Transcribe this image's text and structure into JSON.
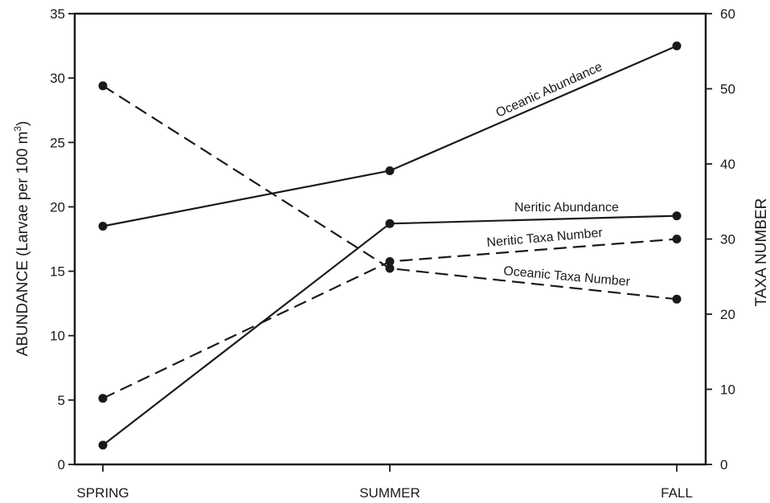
{
  "chart_data": {
    "type": "line",
    "categories": [
      "SPRING",
      "SUMMER",
      "FALL"
    ],
    "ylabel_left_main": "ABUNDANCE (Larvae per 100 m",
    "ylabel_left_sup": "3",
    "ylabel_left_close": ")",
    "ylabel_right": "TAXA NUMBER",
    "ylim_left": [
      0,
      35
    ],
    "ylim_right": [
      0,
      60
    ],
    "yticks_left": [
      "0",
      "5",
      "10",
      "15",
      "20",
      "25",
      "30",
      "35"
    ],
    "yticks_right": [
      "0",
      "10",
      "20",
      "30",
      "40",
      "50",
      "60"
    ],
    "grid": false,
    "series": [
      {
        "name": "Oceanic Abundance",
        "axis": "left",
        "style": "solid",
        "values": [
          18.5,
          22.8,
          32.5
        ]
      },
      {
        "name": "Neritic Abundance",
        "axis": "left",
        "style": "solid",
        "values": [
          1.5,
          18.7,
          19.3
        ]
      },
      {
        "name": "Neritic Taxa Number",
        "axis": "right",
        "style": "dashed",
        "values": [
          8.8,
          27.0,
          30.0
        ]
      },
      {
        "name": "Oceanic Taxa Number",
        "axis": "right",
        "style": "dashed",
        "values": [
          50.4,
          26.1,
          22.0
        ]
      }
    ],
    "colors": {
      "line": "#1a1a1a",
      "axis": "#1a1a1a"
    }
  }
}
